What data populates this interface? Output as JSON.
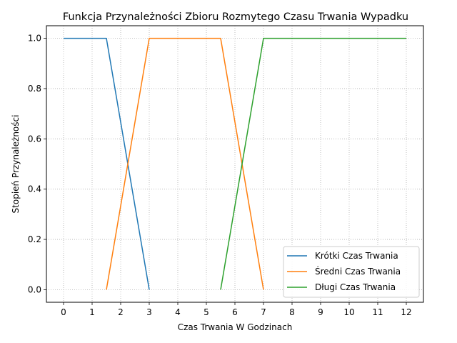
{
  "chart_data": {
    "type": "line",
    "title": "Funkcja Przynależności Zbioru Rozmytego Czasu Trwania Wypadku",
    "xlabel": "Czas Trwania W Godzinach",
    "ylabel": "Stopień Przynależności",
    "xlim": [
      -0.6,
      12.6
    ],
    "ylim": [
      -0.05,
      1.05
    ],
    "xticks": [
      "0",
      "1",
      "2",
      "3",
      "4",
      "5",
      "6",
      "7",
      "8",
      "9",
      "10",
      "11",
      "12"
    ],
    "yticks": [
      "0.0",
      "0.2",
      "0.4",
      "0.6",
      "0.8",
      "1.0"
    ],
    "grid": true,
    "legend_position": "lower-right",
    "series": [
      {
        "name": "Krótki Czas Trwania",
        "color": "#1f77b4",
        "x": [
          0,
          1.5,
          3
        ],
        "y": [
          1.0,
          1.0,
          0.0
        ]
      },
      {
        "name": "Średni Czas Trwania",
        "color": "#ff7f0e",
        "x": [
          1.5,
          3,
          5.5,
          7
        ],
        "y": [
          0.0,
          1.0,
          1.0,
          0.0
        ]
      },
      {
        "name": "Długi Czas Trwania",
        "color": "#2ca02c",
        "x": [
          5.5,
          7,
          12
        ],
        "y": [
          0.0,
          1.0,
          1.0
        ]
      }
    ]
  }
}
